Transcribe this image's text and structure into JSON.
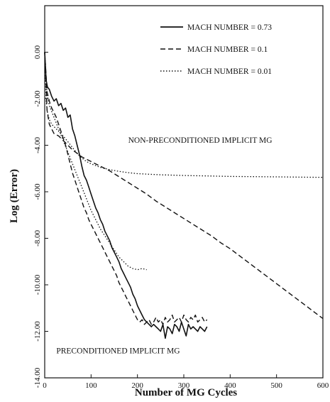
{
  "chart_data": {
    "type": "line",
    "xlabel": "Number of MG Cycles",
    "ylabel": "Log (Error)",
    "xlim": [
      0,
      600
    ],
    "ylim": [
      -14,
      2
    ],
    "x_ticks": [
      {
        "value": 0,
        "label": "0"
      },
      {
        "value": 100,
        "label": "100"
      },
      {
        "value": 200,
        "label": "200"
      },
      {
        "value": 300,
        "label": "300"
      },
      {
        "value": 400,
        "label": "400"
      },
      {
        "value": 500,
        "label": "500"
      },
      {
        "value": 600,
        "label": "600"
      }
    ],
    "y_ticks": [
      {
        "value": 0,
        "label": "0.00"
      },
      {
        "value": -2,
        "label": "-2.00"
      },
      {
        "value": -4,
        "label": "-4.00"
      },
      {
        "value": -6,
        "label": "-6.00"
      },
      {
        "value": -8,
        "label": "-8.00"
      },
      {
        "value": -10,
        "label": "-10.00"
      },
      {
        "value": -12,
        "label": "-12.00"
      },
      {
        "value": -14,
        "label": "-14.00"
      }
    ],
    "grid": false,
    "legend_position": "top-right",
    "annotations": [
      {
        "text": "NON-PRECONDITIONED IMPLICIT MG",
        "x": 180,
        "y": -3.9
      },
      {
        "text": "PRECONDITIONED IMPLICIT MG",
        "x": 25,
        "y": -12.95
      }
    ],
    "series": [
      {
        "name": "MACH NUMBER = 0.73",
        "style": "solid",
        "x": [
          0,
          3,
          6,
          10,
          15,
          20,
          25,
          30,
          35,
          40,
          45,
          50,
          55,
          60,
          65,
          70,
          75,
          80,
          85,
          90,
          95,
          100,
          105,
          110,
          115,
          120,
          125,
          130,
          135,
          140,
          145,
          150,
          155,
          160,
          165,
          170,
          175,
          180,
          185,
          190,
          195,
          200,
          205,
          210,
          215,
          220,
          225,
          230,
          235,
          240,
          245,
          250,
          255,
          260,
          265,
          270,
          275,
          280,
          285,
          290,
          295,
          300,
          305,
          310,
          315,
          320,
          325,
          330,
          335,
          340,
          345,
          350
        ],
        "y": [
          0,
          -1.2,
          -1.5,
          -1.6,
          -1.9,
          -2.1,
          -2.0,
          -2.3,
          -2.2,
          -2.5,
          -2.4,
          -2.8,
          -2.7,
          -3.3,
          -3.6,
          -4.0,
          -4.4,
          -4.9,
          -5.3,
          -5.5,
          -5.8,
          -6.1,
          -6.4,
          -6.7,
          -6.9,
          -7.2,
          -7.4,
          -7.7,
          -7.9,
          -8.1,
          -8.4,
          -8.6,
          -8.8,
          -9.0,
          -9.3,
          -9.5,
          -9.7,
          -9.9,
          -10.1,
          -10.4,
          -10.6,
          -10.9,
          -11.1,
          -11.3,
          -11.5,
          -11.6,
          -11.7,
          -11.8,
          -11.7,
          -11.8,
          -11.9,
          -12.0,
          -11.7,
          -12.3,
          -11.8,
          -11.9,
          -12.1,
          -11.7,
          -11.8,
          -12.0,
          -11.6,
          -11.9,
          -12.2,
          -11.7,
          -11.9,
          -11.8,
          -11.9,
          -12.0,
          -11.8,
          -11.9,
          -12.0,
          -11.8
        ]
      },
      {
        "name": "MACH NUMBER = 0.1",
        "style": "dashed",
        "x": [
          0,
          5,
          10,
          20,
          30,
          40,
          50,
          60,
          80,
          100,
          120,
          140,
          160,
          180,
          200,
          220,
          240,
          260,
          280,
          300,
          320,
          340,
          360,
          380,
          400,
          420,
          440,
          460,
          480,
          500,
          520,
          540,
          560,
          580,
          600
        ],
        "y": [
          0,
          -2.5,
          -3.1,
          -3.5,
          -3.6,
          -3.8,
          -4.0,
          -4.2,
          -4.5,
          -4.7,
          -4.9,
          -5.1,
          -5.35,
          -5.6,
          -5.85,
          -6.1,
          -6.4,
          -6.65,
          -6.9,
          -7.15,
          -7.4,
          -7.65,
          -7.9,
          -8.2,
          -8.45,
          -8.75,
          -9.05,
          -9.35,
          -9.65,
          -9.95,
          -10.25,
          -10.55,
          -10.85,
          -11.15,
          -11.45
        ]
      },
      {
        "name": "MACH NUMBER = 0.01",
        "style": "dotted",
        "x": [
          0,
          3,
          6,
          10,
          15,
          20,
          30,
          40,
          50,
          60,
          70,
          80,
          90,
          100,
          120,
          140,
          160,
          180,
          200,
          250,
          300,
          350,
          400,
          450,
          500,
          550,
          600
        ],
        "y": [
          0,
          -2.1,
          -2.6,
          -2.9,
          -3.1,
          -3.2,
          -3.4,
          -3.6,
          -3.85,
          -4.1,
          -4.35,
          -4.55,
          -4.7,
          -4.8,
          -4.95,
          -5.05,
          -5.12,
          -5.18,
          -5.22,
          -5.27,
          -5.3,
          -5.32,
          -5.34,
          -5.35,
          -5.36,
          -5.37,
          -5.38
        ]
      },
      {
        "name": "",
        "style": "dashed",
        "x": [
          0,
          5,
          10,
          15,
          20,
          25,
          30,
          35,
          40,
          45,
          50,
          55,
          60,
          65,
          70,
          75,
          80,
          85,
          90,
          95,
          100,
          105,
          110,
          115,
          120,
          125,
          130,
          135,
          140,
          145,
          150,
          155,
          160,
          165,
          170,
          175,
          180,
          185,
          190,
          195,
          200,
          205,
          210,
          215,
          220,
          225,
          230,
          235,
          240,
          245,
          250,
          255,
          260,
          265,
          270,
          275,
          280,
          285,
          290,
          295,
          300,
          305,
          310,
          315,
          320,
          325,
          330,
          335,
          340,
          345,
          350
        ],
        "y": [
          0,
          -1.7,
          -2.1,
          -2.4,
          -2.6,
          -2.8,
          -3.1,
          -3.4,
          -3.7,
          -4.0,
          -4.4,
          -4.8,
          -5.2,
          -5.5,
          -5.8,
          -6.1,
          -6.4,
          -6.7,
          -6.9,
          -7.2,
          -7.4,
          -7.6,
          -7.8,
          -8.0,
          -8.2,
          -8.4,
          -8.6,
          -8.8,
          -9.0,
          -9.2,
          -9.4,
          -9.6,
          -9.9,
          -10.1,
          -10.3,
          -10.5,
          -10.7,
          -10.9,
          -11.1,
          -11.3,
          -11.5,
          -11.6,
          -11.5,
          -11.7,
          -11.6,
          -11.5,
          -11.7,
          -11.6,
          -11.4,
          -11.6,
          -11.5,
          -11.7,
          -11.4,
          -11.6,
          -11.5,
          -11.3,
          -11.6,
          -11.5,
          -11.4,
          -11.6,
          -11.3,
          -11.5,
          -11.6,
          -11.4,
          -11.5,
          -11.3,
          -11.6,
          -11.5,
          -11.4,
          -11.6,
          -11.5
        ]
      },
      {
        "name": "",
        "style": "dotted",
        "x": [
          0,
          5,
          10,
          20,
          30,
          40,
          50,
          60,
          70,
          80,
          90,
          100,
          110,
          120,
          130,
          140,
          150,
          160,
          170,
          180,
          190,
          200,
          210,
          220
        ],
        "y": [
          0,
          -1.8,
          -2.3,
          -2.8,
          -3.3,
          -3.8,
          -4.3,
          -4.8,
          -5.3,
          -5.8,
          -6.3,
          -6.8,
          -7.2,
          -7.6,
          -7.9,
          -8.2,
          -8.5,
          -8.8,
          -9.0,
          -9.2,
          -9.3,
          -9.35,
          -9.3,
          -9.35
        ]
      }
    ]
  }
}
